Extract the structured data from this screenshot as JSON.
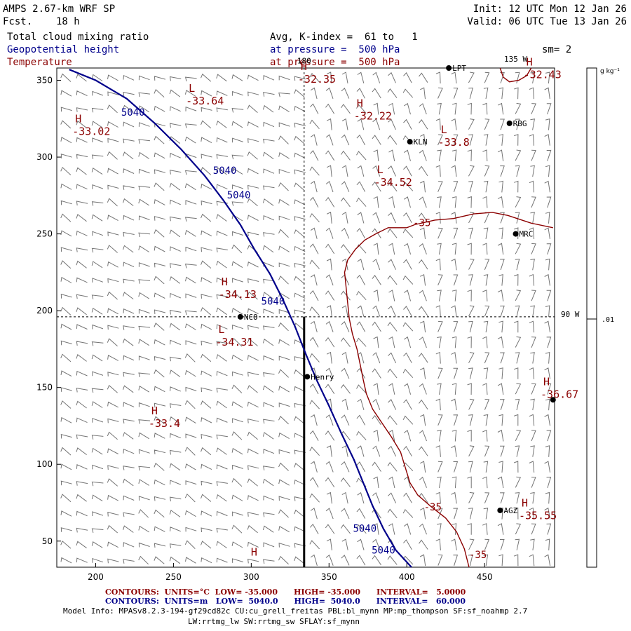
{
  "header": {
    "model": "AMPS 2.67-km WRF SP",
    "fcst_label": "Fcst.",
    "fcst_value": "18 h",
    "init": "Init: 12 UTC Mon 12 Jan 26",
    "valid": "Valid: 06 UTC Tue 13 Jan 26",
    "field1": "Total cloud mixing ratio",
    "field2": "Geopotential height",
    "field3": "Temperature",
    "avg": "Avg, K-index =  61 to   1",
    "pres1": "at pressure =  500 hPa",
    "pres2": "at pressure =  500 hPa",
    "sm": "sm= 2"
  },
  "colorbar": {
    "unit": "g kg⁻¹",
    "tick": ".01"
  },
  "chart_data": {
    "type": "contour",
    "xlim": [
      175,
      495
    ],
    "ylim": [
      33,
      358
    ],
    "x_ticks": [
      200,
      250,
      300,
      350,
      400,
      450
    ],
    "y_ticks": [
      50,
      100,
      150,
      200,
      250,
      300,
      350
    ],
    "grid_labels": [
      {
        "text": "180",
        "x": 334,
        "y": 361
      },
      {
        "text": "135 W",
        "x": 470,
        "y": 362
      },
      {
        "text": "90 W",
        "x": 505,
        "y": 196
      }
    ],
    "dashed_lines": {
      "x": 334,
      "y": 196
    },
    "section_line": {
      "x": 334,
      "y0": 33,
      "y1": 196
    },
    "height_contours": [
      {
        "value": 5040,
        "points": [
          [
            183,
            357
          ],
          [
            200,
            350
          ],
          [
            220,
            338
          ],
          [
            238,
            322
          ],
          [
            255,
            305
          ],
          [
            270,
            288
          ],
          [
            282,
            272
          ],
          [
            293,
            256
          ],
          [
            302,
            240
          ],
          [
            312,
            224
          ],
          [
            320,
            208
          ],
          [
            328,
            190
          ],
          [
            335,
            172
          ],
          [
            342,
            155
          ],
          [
            350,
            138
          ],
          [
            358,
            120
          ],
          [
            366,
            103
          ],
          [
            372,
            88
          ],
          [
            378,
            73
          ],
          [
            385,
            58
          ],
          [
            393,
            44
          ],
          [
            403,
            33
          ]
        ]
      }
    ],
    "height_labels": [
      {
        "text": "5040",
        "x": 224,
        "y": 327
      },
      {
        "text": "5040",
        "x": 283,
        "y": 289
      },
      {
        "text": "5040",
        "x": 292,
        "y": 273
      },
      {
        "text": "5040",
        "x": 314,
        "y": 204
      },
      {
        "text": "5040",
        "x": 373,
        "y": 56
      },
      {
        "text": "5040",
        "x": 385,
        "y": 42
      }
    ],
    "temp_contours": [
      {
        "value": -35,
        "points": [
          [
            494,
            254
          ],
          [
            480,
            257
          ],
          [
            465,
            262
          ],
          [
            455,
            264
          ],
          [
            443,
            263
          ],
          [
            430,
            260
          ],
          [
            418,
            259
          ],
          [
            405,
            256
          ],
          [
            400,
            254
          ],
          [
            388,
            254
          ],
          [
            380,
            250
          ],
          [
            373,
            246
          ],
          [
            367,
            240
          ],
          [
            362,
            233
          ],
          [
            360,
            225
          ],
          [
            361,
            215
          ],
          [
            362,
            205
          ],
          [
            363,
            195
          ],
          [
            365,
            185
          ],
          [
            368,
            175
          ],
          [
            370,
            165
          ],
          [
            372,
            155
          ],
          [
            374,
            146
          ],
          [
            378,
            136
          ],
          [
            384,
            127
          ],
          [
            390,
            118
          ],
          [
            396,
            108
          ],
          [
            399,
            98
          ],
          [
            402,
            88
          ],
          [
            407,
            80
          ],
          [
            415,
            73
          ],
          [
            425,
            65
          ],
          [
            432,
            56
          ],
          [
            437,
            45
          ],
          [
            440,
            33
          ]
        ]
      },
      {
        "value": -35,
        "points": [
          [
            460,
            358
          ],
          [
            462,
            352
          ],
          [
            466,
            349
          ],
          [
            472,
            350
          ],
          [
            477,
            353
          ],
          [
            480,
            358
          ]
        ]
      }
    ],
    "temp_labels": [
      {
        "text": "-35",
        "x": 404,
        "y": 255
      },
      {
        "text": "-35",
        "x": 411,
        "y": 70
      },
      {
        "text": "-35",
        "x": 440,
        "y": 39
      }
    ],
    "hl_labels": [
      {
        "type": "H",
        "value": "-32.35",
        "x": 330,
        "y": 352
      },
      {
        "type": "L",
        "value": "-33.64",
        "x": 258,
        "y": 338
      },
      {
        "type": "H",
        "value": "-32.22",
        "x": 366,
        "y": 328
      },
      {
        "type": "H",
        "value": "-33.02",
        "x": 185,
        "y": 318
      },
      {
        "type": "L",
        "value": "-33.8",
        "x": 420,
        "y": 311
      },
      {
        "type": "L",
        "value": "-34.52",
        "x": 379,
        "y": 285
      },
      {
        "type": "H",
        "value": "-32.43",
        "x": 475,
        "y": 355
      },
      {
        "type": "H",
        "value": "-34.13",
        "x": 279,
        "y": 212
      },
      {
        "type": "L",
        "value": "-34.31",
        "x": 277,
        "y": 181
      },
      {
        "type": "H",
        "value": "-36.67",
        "x": 486,
        "y": 147
      },
      {
        "type": "H",
        "value": "-33.4",
        "x": 234,
        "y": 128
      },
      {
        "type": "H",
        "value": "-35.55",
        "x": 472,
        "y": 68
      },
      {
        "type": "H",
        "value": "",
        "x": 298,
        "y": 36
      }
    ],
    "stations": [
      {
        "name": "LPT",
        "x": 427,
        "y": 358
      },
      {
        "name": "RBG",
        "x": 466,
        "y": 322
      },
      {
        "name": "KLN",
        "x": 402,
        "y": 310
      },
      {
        "name": "MRC",
        "x": 470,
        "y": 250
      },
      {
        "name": "NCO",
        "x": 293,
        "y": 196
      },
      {
        "name": "Henry",
        "x": 336,
        "y": 157
      },
      {
        "name": "",
        "x": 494,
        "y": 142
      },
      {
        "name": "AGZ",
        "x": 460,
        "y": 70
      }
    ]
  },
  "footer": {
    "temp_line": "CONTOURS:  UNITS=°C  LOW= -35.000      HIGH= -35.000      INTERVAL=   5.0000",
    "height_line": "CONTOURS:  UNITS=m   LOW=  5040.0      HIGH=  5040.0      INTERVAL=   60.000",
    "model_line1": "Model Info: MPASv8.2.3-194-gf29cd82c CU:cu_grell_freitas PBL:bl_mynn MP:mp_thompson SF:sf_noahmp 2.7",
    "model_line2": "LW:rrtmg_lw SW:rrtmg_sw SFLAY:sf_mynn"
  }
}
